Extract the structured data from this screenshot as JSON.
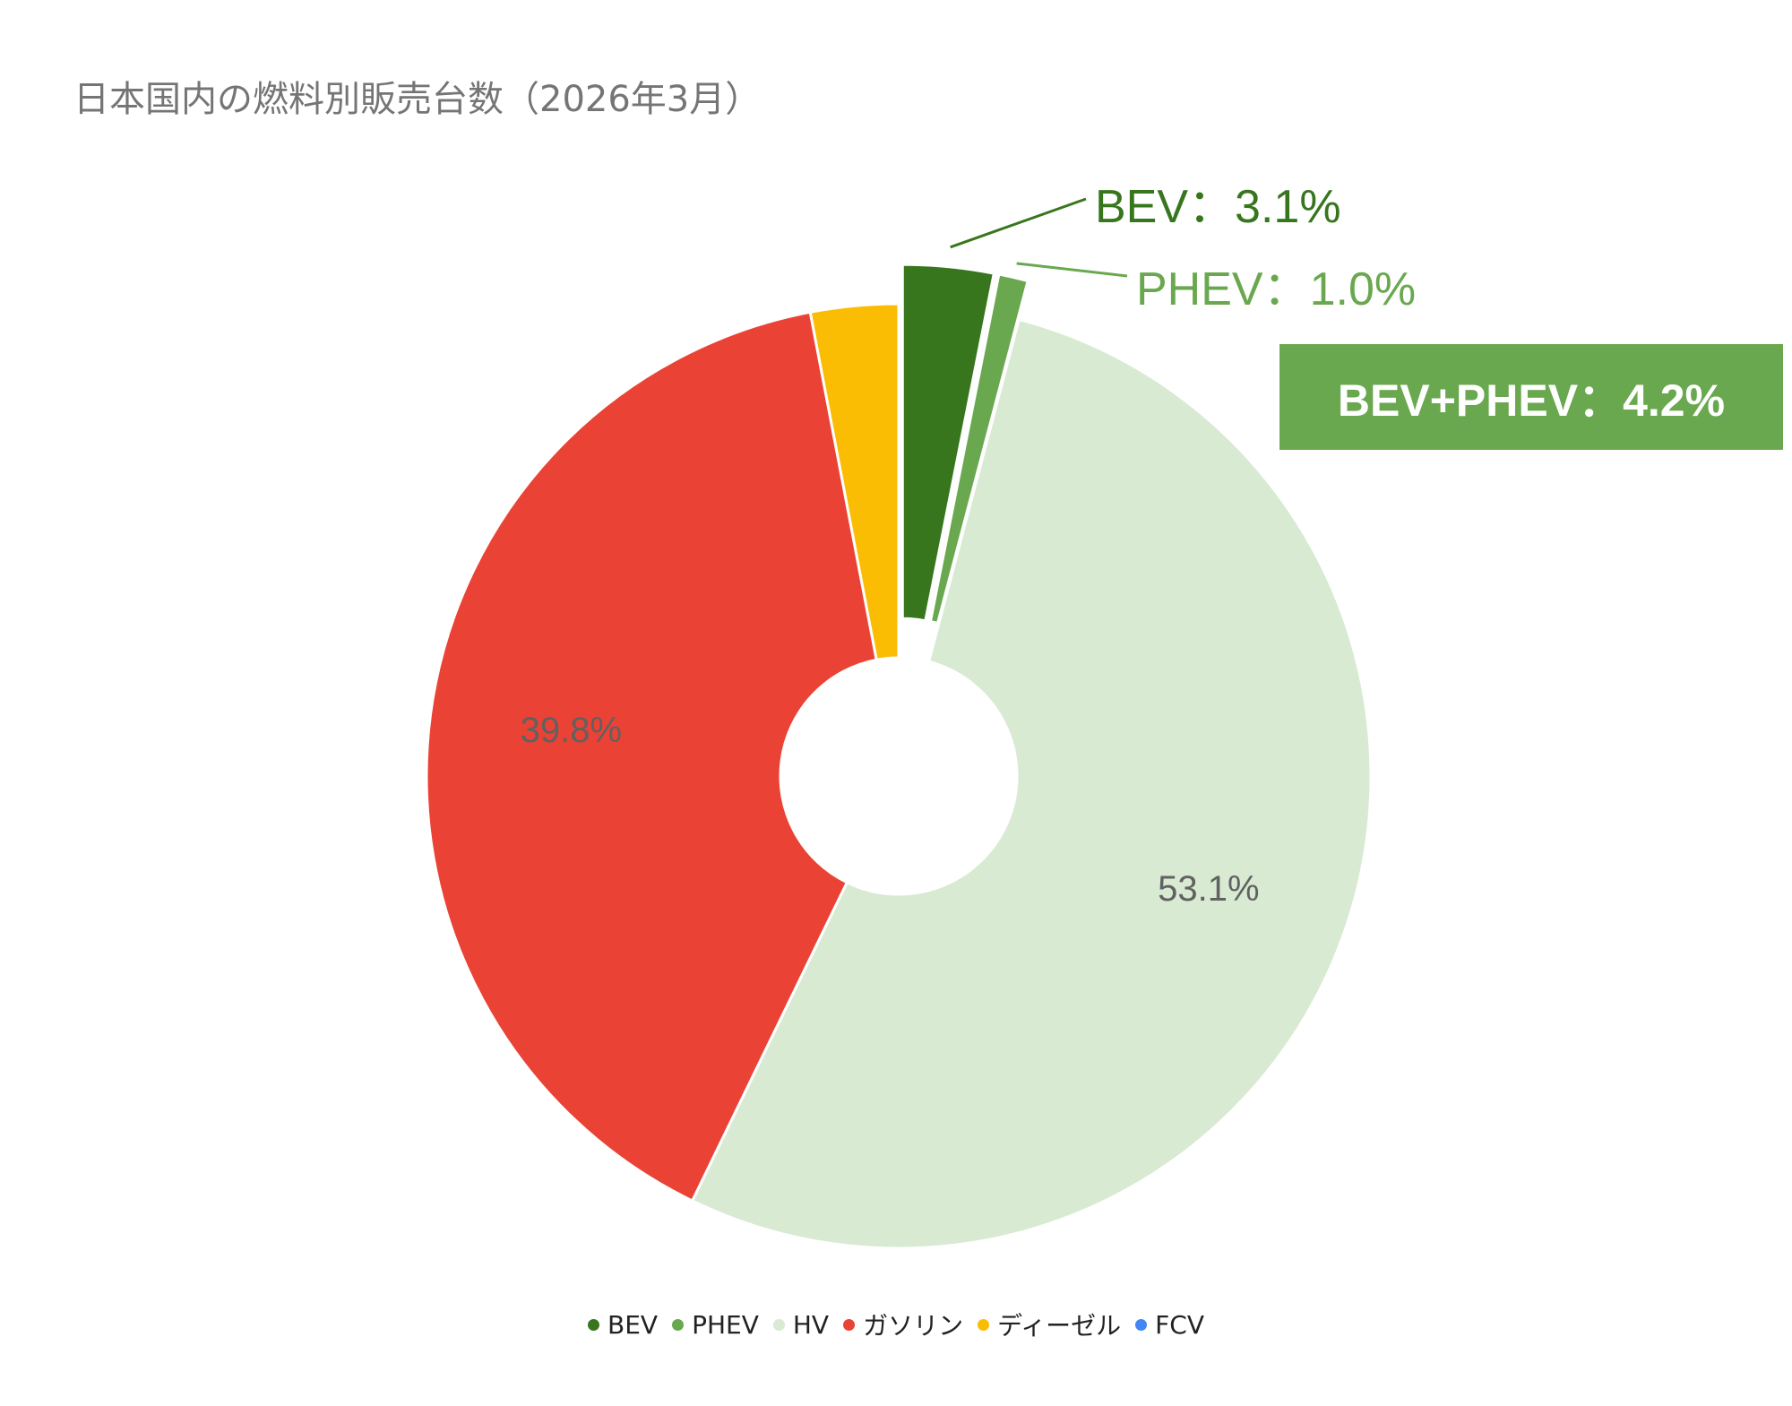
{
  "chart_data": {
    "type": "pie",
    "title": "日本国内の燃料別販売台数（2026年3月）",
    "categories": [
      "BEV",
      "PHEV",
      "HV",
      "ガソリン",
      "ディーゼル",
      "FCV"
    ],
    "values": [
      3.1,
      1.0,
      53.1,
      39.8,
      3.0,
      0.0
    ],
    "colors": [
      "#38761d",
      "#6aa84f",
      "#d9ead3",
      "#ea4335",
      "#fbbc04",
      "#4285f4"
    ],
    "data_labels": [
      "",
      "",
      "53.1%",
      "39.8%",
      "",
      ""
    ],
    "exploded": [
      "BEV",
      "PHEV"
    ],
    "legend_position": "bottom",
    "callouts": [
      {
        "label": "BEV：3.1%",
        "color": "#38761d"
      },
      {
        "label": "PHEV：1.0%",
        "color": "#6aa84f"
      }
    ],
    "summary_box": {
      "label": "BEV+PHEV：4.2%",
      "color": "#6aa84f"
    }
  }
}
